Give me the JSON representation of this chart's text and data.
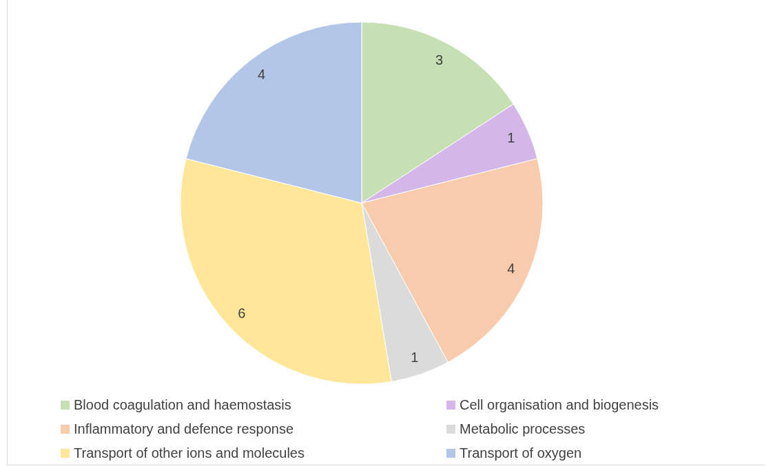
{
  "chart_data": {
    "type": "pie",
    "categories": [
      "Blood coagulation and haemostasis",
      "Cell organisation and biogenesis",
      "Inflammatory and defence response",
      "Metabolic processes",
      "Transport of other ions and molecules",
      "Transport of oxygen"
    ],
    "values": [
      3,
      1,
      4,
      1,
      6,
      4
    ],
    "colors": [
      "#c6e0b4",
      "#d5b6e8",
      "#f8cbad",
      "#dbdbdb",
      "#ffe699",
      "#b4c6e7"
    ],
    "data_labels": true,
    "legend": "bottom"
  }
}
